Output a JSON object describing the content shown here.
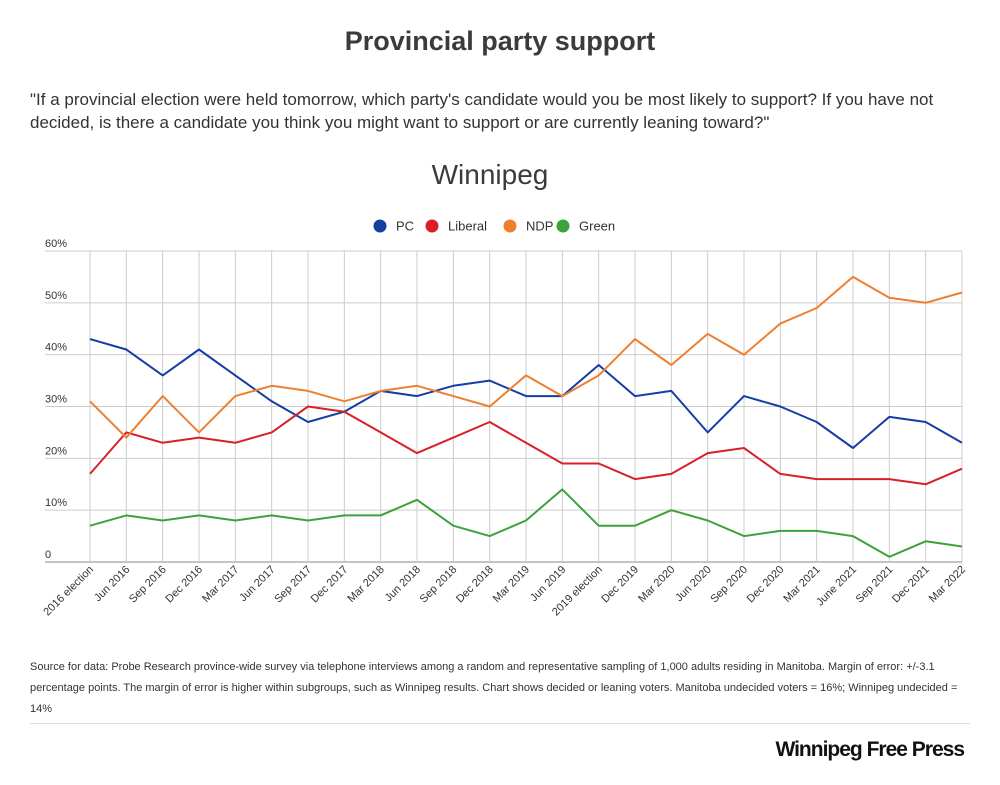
{
  "header": {
    "title": "Provincial party support",
    "subtitle": "\"If a provincial election were held tomorrow, which party's candidate would you be most likely to support? If you have not decided, is there a candidate you think you might want to support or are currently leaning toward?\""
  },
  "chart_data": {
    "type": "line",
    "title": "Winnipeg",
    "xlabel": "",
    "ylabel": "",
    "ylim": [
      0,
      60
    ],
    "yticks": [
      0,
      10,
      20,
      30,
      40,
      50,
      60
    ],
    "ytick_labels": [
      "0",
      "10%",
      "20%",
      "30%",
      "40%",
      "50%",
      "60%"
    ],
    "grid": true,
    "legend_position": "top-center",
    "categories": [
      "2016 election",
      "Jun 2016",
      "Sep 2016",
      "Dec 2016",
      "Mar 2017",
      "Jun 2017",
      "Sep 2017",
      "Dec 2017",
      "Mar 2018",
      "Jun 2018",
      "Sep 2018",
      "Dec 2018",
      "Mar 2019",
      "Jun 2019",
      "2019 election",
      "Dec 2019",
      "Mar 2020",
      "Jun 2020",
      "Sep 2020",
      "Dec 2020",
      "Mar 2021",
      "June 2021",
      "Sep 2021",
      "Dec 2021",
      "Mar 2022"
    ],
    "series": [
      {
        "name": "PC",
        "color": "#153ea3",
        "values": [
          43,
          41,
          36,
          41,
          36,
          31,
          27,
          29,
          33,
          32,
          34,
          35,
          32,
          32,
          38,
          32,
          33,
          25,
          32,
          30,
          27,
          22,
          28,
          27,
          23
        ]
      },
      {
        "name": "Liberal",
        "color": "#d62128",
        "values": [
          17,
          25,
          23,
          24,
          23,
          25,
          30,
          29,
          25,
          21,
          24,
          27,
          23,
          19,
          19,
          16,
          17,
          21,
          22,
          17,
          16,
          16,
          16,
          15,
          18
        ]
      },
      {
        "name": "NDP",
        "color": "#ef7f30",
        "values": [
          31,
          24,
          32,
          25,
          32,
          34,
          33,
          31,
          33,
          34,
          32,
          30,
          36,
          32,
          36,
          43,
          38,
          44,
          40,
          46,
          49,
          55,
          51,
          50,
          52
        ]
      },
      {
        "name": "Green",
        "color": "#3ca23a",
        "values": [
          7,
          9,
          8,
          9,
          8,
          9,
          8,
          9,
          9,
          12,
          7,
          5,
          8,
          14,
          7,
          7,
          10,
          8,
          5,
          6,
          6,
          5,
          1,
          4,
          3
        ]
      }
    ]
  },
  "footer": {
    "source": "Source for data:  Probe Research province-wide survey via telephone interviews among a random and representative sampling of 1,000 adults residing in Manitoba.  Margin of error: +/-3.1 percentage points.  The margin of error is higher within subgroups, such as Winnipeg results.  Chart shows decided or leaning voters. Manitoba undecided voters = 16%; Winnipeg undecided = 14%",
    "brand": "Winnipeg Free Press"
  }
}
